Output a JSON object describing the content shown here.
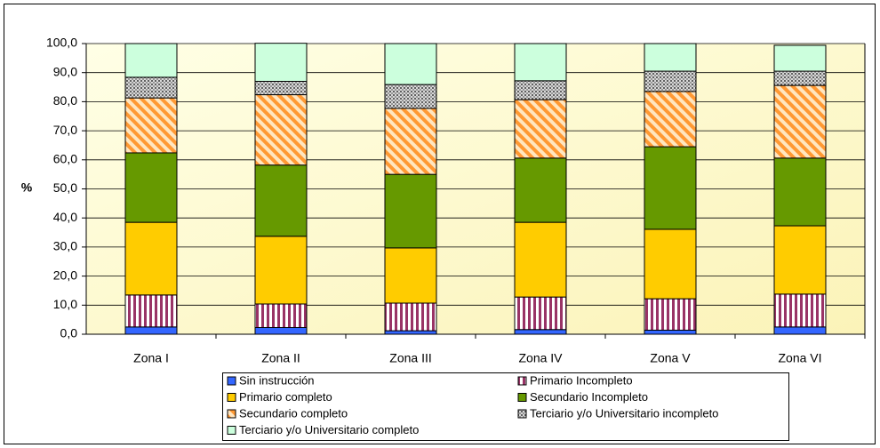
{
  "chart_data": {
    "type": "stacked-bar",
    "y_label": "%",
    "categories": [
      "Zona I",
      "Zona II",
      "Zona III",
      "Zona IV",
      "Zona V",
      "Zona VI"
    ],
    "series": [
      {
        "name": "Sin instrucción",
        "color": "#3366ff",
        "values": [
          2.5,
          2.3,
          1.2,
          1.6,
          1.4,
          2.5
        ]
      },
      {
        "name": "Primario Incompleto",
        "color": "#993366",
        "pattern": "vertical-stripes",
        "values": [
          11.0,
          8.1,
          9.5,
          11.2,
          10.8,
          11.3
        ]
      },
      {
        "name": "Primario completo",
        "color": "#ffcc00",
        "values": [
          25.0,
          23.3,
          19.0,
          25.7,
          23.9,
          23.5
        ]
      },
      {
        "name": "Secundario Incompleto",
        "color": "#669900",
        "values": [
          23.9,
          24.5,
          25.3,
          22.1,
          28.4,
          23.3
        ]
      },
      {
        "name": "Secundario completo",
        "color": "#ff9933",
        "pattern": "diagonal-stripes",
        "values": [
          18.9,
          24.2,
          22.7,
          20.1,
          19.0,
          25.0
        ]
      },
      {
        "name": "Terciario y/o Universitario incompleto",
        "color": "#969696",
        "pattern": "dots",
        "values": [
          7.1,
          4.6,
          8.2,
          6.5,
          7.0,
          4.9
        ]
      },
      {
        "name": "Terciario y/o Universitario completo",
        "color": "#ccffdd",
        "values": [
          11.6,
          13.1,
          14.1,
          12.8,
          9.5,
          8.9
        ]
      }
    ],
    "ylim": [
      0,
      100
    ],
    "yticks": [
      {
        "value": 0,
        "label": "0,0"
      },
      {
        "value": 10,
        "label": "10,0"
      },
      {
        "value": 20,
        "label": "20,0"
      },
      {
        "value": 30,
        "label": "30,0"
      },
      {
        "value": 40,
        "label": "40,0"
      },
      {
        "value": 50,
        "label": "50,0"
      },
      {
        "value": 60,
        "label": "60,0"
      },
      {
        "value": 70,
        "label": "70,0"
      },
      {
        "value": 80,
        "label": "80,0"
      },
      {
        "value": 90,
        "label": "90,0"
      },
      {
        "value": 100,
        "label": "100,0"
      }
    ],
    "grid": true
  }
}
